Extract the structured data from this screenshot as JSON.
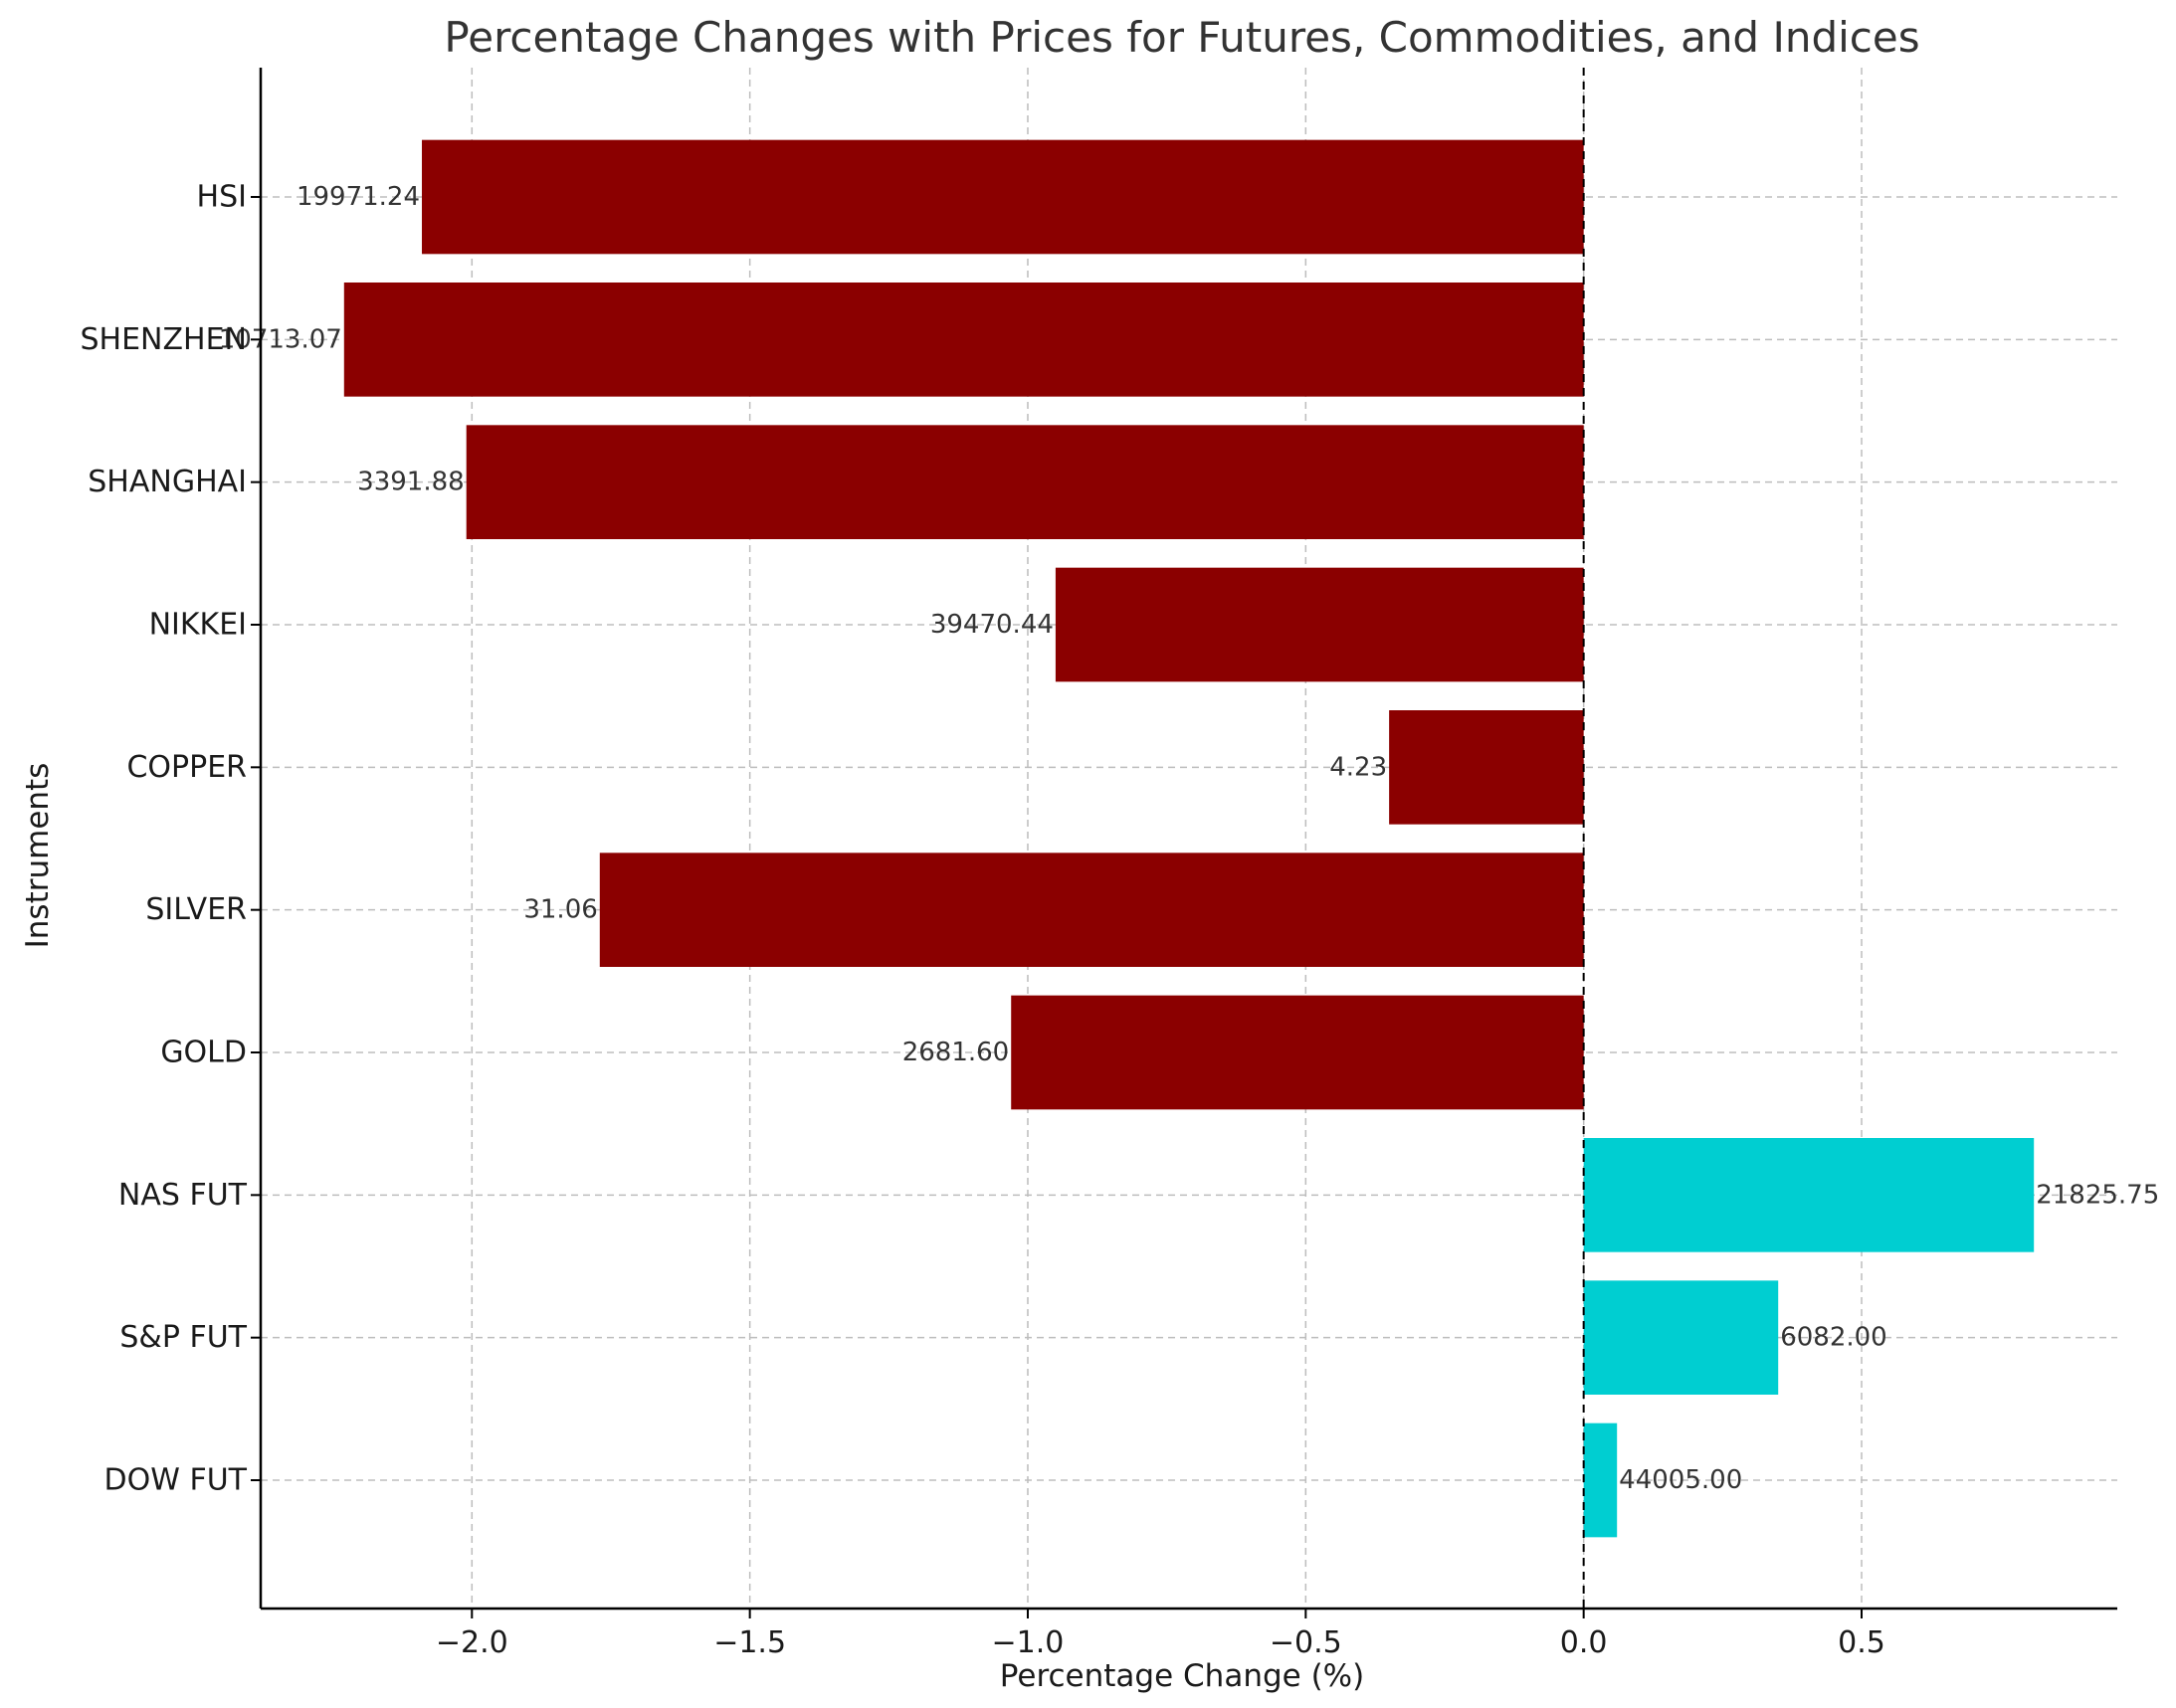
{
  "chart_data": {
    "type": "bar",
    "orientation": "horizontal",
    "title": "Percentage Changes with Prices for Futures, Commodities, and Indices",
    "xlabel": "Percentage Change (%)",
    "ylabel": "Instruments",
    "categories": [
      "DOW FUT",
      "S&P FUT",
      "NAS FUT",
      "GOLD",
      "SILVER",
      "COPPER",
      "NIKKEI",
      "SHANGHAI",
      "SHENZHEN",
      "HSI"
    ],
    "values": [
      0.06,
      0.35,
      0.81,
      -1.03,
      -1.77,
      -0.35,
      -0.95,
      -2.01,
      -2.23,
      -2.09
    ],
    "price_labels": [
      "44005.00",
      "6082.00",
      "21825.75",
      "2681.60",
      "31.06",
      "4.23",
      "39470.44",
      "3391.88",
      "10713.07",
      "19971.24"
    ],
    "xlim": [
      -2.38,
      0.96
    ],
    "xticks": [
      -2.0,
      -1.5,
      -1.0,
      -0.5,
      0.0,
      0.5
    ],
    "xtick_labels": [
      "−2.0",
      "−1.5",
      "−1.0",
      "−0.5",
      "0.0",
      "0.5"
    ],
    "grid": true,
    "colors": {
      "positive": "#00ced1",
      "negative": "#8b0000"
    },
    "reference_line": {
      "x": 0,
      "style": "dashed"
    }
  }
}
